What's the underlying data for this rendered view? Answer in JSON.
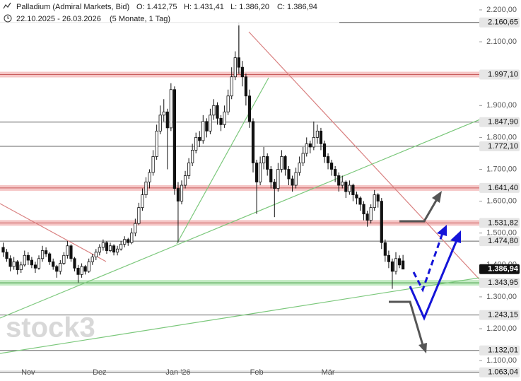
{
  "chart_data": {
    "type": "candlestick",
    "title": "Palladium (Admiral Markets, Bid)",
    "ohlc": [
      "O: 1.412,75",
      "H: 1.431,41",
      "L: 1.386,20",
      "C: 1.386,94"
    ],
    "subtitle": "22.10.2025 - 26.03.2026",
    "period": "(5 Monate, 1 Tag)",
    "watermark": "stock3",
    "up_color": "#ffffff",
    "down_color": "#111111",
    "ylim": [
      1036,
      2231
    ],
    "yticks": [
      {
        "value": 2200,
        "label": "2.200,00"
      },
      {
        "value": 2100,
        "label": "2.100,00"
      },
      {
        "value": 2000,
        "label": "2.000,00"
      },
      {
        "value": 1900,
        "label": "1.900,00"
      },
      {
        "value": 1800,
        "label": "1.800,00"
      },
      {
        "value": 1700,
        "label": "1.700,00"
      },
      {
        "value": 1600,
        "label": "1.600,00"
      },
      {
        "value": 1500,
        "label": "1.500,00"
      },
      {
        "value": 1400,
        "label": "1.400,00"
      },
      {
        "value": 1300,
        "label": "1.300,00"
      },
      {
        "value": 1200,
        "label": "1.200,00"
      },
      {
        "value": 1100,
        "label": "1.100,00"
      }
    ],
    "levels": [
      {
        "value": 2160.65,
        "label": "2.160,65",
        "style": "line-dark"
      },
      {
        "value": 1997.1,
        "label": "1.997,10",
        "style": "band-red"
      },
      {
        "value": 1847.9,
        "label": "1.847,90",
        "style": "line"
      },
      {
        "value": 1772.1,
        "label": "1.772,10",
        "style": "line"
      },
      {
        "value": 1641.4,
        "label": "1.641,40",
        "style": "band-red"
      },
      {
        "value": 1531.82,
        "label": "1.531,82",
        "style": "band-red"
      },
      {
        "value": 1474.8,
        "label": "1.474,80",
        "style": "line"
      },
      {
        "value": 1386.94,
        "label": "1.386,94",
        "style": "price"
      },
      {
        "value": 1343.95,
        "label": "1.343,95",
        "style": "band-green"
      },
      {
        "value": 1243.15,
        "label": "1.243,15",
        "style": "line"
      },
      {
        "value": 1132.01,
        "label": "1.132,01",
        "style": "line"
      },
      {
        "value": 1063.04,
        "label": "1.063,04",
        "style": "line"
      }
    ],
    "categories": [
      null,
      null,
      null,
      null,
      null,
      null,
      null,
      null,
      "Nov",
      null,
      null,
      null,
      null,
      null,
      null,
      null,
      null,
      null,
      null,
      null,
      null,
      null,
      null,
      null,
      null,
      null,
      null,
      null,
      "Dez",
      null,
      null,
      null,
      null,
      null,
      null,
      null,
      null,
      null,
      null,
      null,
      null,
      null,
      null,
      null,
      null,
      null,
      null,
      null,
      null,
      null,
      "Jan '26",
      null,
      null,
      null,
      null,
      null,
      null,
      null,
      null,
      null,
      null,
      null,
      null,
      null,
      null,
      null,
      null,
      null,
      null,
      null,
      null,
      null,
      "Feb",
      null,
      null,
      null,
      null,
      null,
      null,
      null,
      null,
      null,
      null,
      null,
      null,
      null,
      null,
      null,
      null,
      null,
      null,
      null,
      "Mär",
      null,
      null,
      null,
      null,
      null,
      null,
      null,
      null,
      null,
      null,
      null,
      null,
      null,
      null,
      null,
      null,
      null,
      null,
      null,
      null
    ],
    "values": [
      [
        1455,
        1470,
        1425,
        1440
      ],
      [
        1440,
        1450,
        1410,
        1420
      ],
      [
        1420,
        1430,
        1380,
        1395
      ],
      [
        1395,
        1425,
        1385,
        1410
      ],
      [
        1410,
        1415,
        1370,
        1385
      ],
      [
        1385,
        1410,
        1375,
        1400
      ],
      [
        1400,
        1445,
        1395,
        1430
      ],
      [
        1430,
        1440,
        1400,
        1415
      ],
      [
        1415,
        1425,
        1390,
        1400
      ],
      [
        1400,
        1410,
        1375,
        1390
      ],
      [
        1390,
        1430,
        1385,
        1420
      ],
      [
        1420,
        1460,
        1410,
        1445
      ],
      [
        1445,
        1455,
        1425,
        1435
      ],
      [
        1435,
        1440,
        1400,
        1410
      ],
      [
        1410,
        1420,
        1385,
        1395
      ],
      [
        1395,
        1400,
        1360,
        1380
      ],
      [
        1380,
        1415,
        1370,
        1405
      ],
      [
        1405,
        1440,
        1400,
        1430
      ],
      [
        1430,
        1475,
        1420,
        1460
      ],
      [
        1460,
        1465,
        1410,
        1420
      ],
      [
        1420,
        1425,
        1380,
        1390
      ],
      [
        1390,
        1400,
        1345,
        1370
      ],
      [
        1370,
        1405,
        1360,
        1395
      ],
      [
        1395,
        1400,
        1370,
        1380
      ],
      [
        1380,
        1420,
        1375,
        1410
      ],
      [
        1410,
        1435,
        1400,
        1425
      ],
      [
        1425,
        1450,
        1415,
        1440
      ],
      [
        1440,
        1465,
        1430,
        1455
      ],
      [
        1455,
        1480,
        1445,
        1470
      ],
      [
        1470,
        1475,
        1435,
        1445
      ],
      [
        1445,
        1470,
        1440,
        1460
      ],
      [
        1460,
        1465,
        1430,
        1440
      ],
      [
        1440,
        1460,
        1430,
        1450
      ],
      [
        1450,
        1475,
        1445,
        1465
      ],
      [
        1465,
        1490,
        1455,
        1480
      ],
      [
        1480,
        1485,
        1460,
        1470
      ],
      [
        1470,
        1515,
        1465,
        1500
      ],
      [
        1500,
        1545,
        1490,
        1530
      ],
      [
        1530,
        1595,
        1525,
        1580
      ],
      [
        1580,
        1640,
        1570,
        1620
      ],
      [
        1620,
        1675,
        1610,
        1660
      ],
      [
        1660,
        1700,
        1640,
        1690
      ],
      [
        1690,
        1760,
        1680,
        1740
      ],
      [
        1740,
        1840,
        1730,
        1820
      ],
      [
        1820,
        1900,
        1810,
        1870
      ],
      [
        1870,
        1920,
        1850,
        1880
      ],
      [
        1880,
        1890,
        1700,
        1830
      ],
      [
        1830,
        1970,
        1820,
        1950
      ],
      [
        1950,
        1960,
        1620,
        1640
      ],
      [
        1640,
        1660,
        1470,
        1600
      ],
      [
        1600,
        1665,
        1590,
        1650
      ],
      [
        1650,
        1695,
        1640,
        1680
      ],
      [
        1680,
        1735,
        1670,
        1720
      ],
      [
        1720,
        1780,
        1710,
        1760
      ],
      [
        1760,
        1815,
        1750,
        1800
      ],
      [
        1800,
        1820,
        1770,
        1790
      ],
      [
        1790,
        1870,
        1780,
        1850
      ],
      [
        1850,
        1860,
        1800,
        1820
      ],
      [
        1820,
        1890,
        1810,
        1870
      ],
      [
        1870,
        1920,
        1855,
        1900
      ],
      [
        1900,
        1910,
        1840,
        1860
      ],
      [
        1860,
        1870,
        1820,
        1840
      ],
      [
        1840,
        1900,
        1830,
        1880
      ],
      [
        1880,
        1950,
        1870,
        1930
      ],
      [
        1930,
        2020,
        1920,
        1990
      ],
      [
        1990,
        2070,
        1980,
        2050
      ],
      [
        2050,
        2160.65,
        2000,
        2020
      ],
      [
        2020,
        2040,
        1960,
        1990
      ],
      [
        1990,
        2000,
        1900,
        1930
      ],
      [
        1930,
        1950,
        1830,
        1850
      ],
      [
        1850,
        1860,
        1690,
        1720
      ],
      [
        1720,
        1730,
        1560,
        1660
      ],
      [
        1660,
        1740,
        1650,
        1720
      ],
      [
        1720,
        1770,
        1700,
        1740
      ],
      [
        1740,
        1750,
        1680,
        1700
      ],
      [
        1700,
        1710,
        1640,
        1660
      ],
      [
        1660,
        1670,
        1550,
        1640
      ],
      [
        1640,
        1720,
        1630,
        1700
      ],
      [
        1700,
        1760,
        1690,
        1740
      ],
      [
        1740,
        1745,
        1680,
        1700
      ],
      [
        1700,
        1710,
        1650,
        1670
      ],
      [
        1670,
        1680,
        1630,
        1650
      ],
      [
        1650,
        1705,
        1640,
        1690
      ],
      [
        1690,
        1740,
        1680,
        1720
      ],
      [
        1720,
        1770,
        1710,
        1750
      ],
      [
        1750,
        1800,
        1740,
        1780
      ],
      [
        1780,
        1790,
        1750,
        1770
      ],
      [
        1770,
        1850,
        1760,
        1800
      ],
      [
        1800,
        1840,
        1780,
        1820
      ],
      [
        1820,
        1830,
        1760,
        1780
      ],
      [
        1780,
        1790,
        1720,
        1740
      ],
      [
        1740,
        1750,
        1700,
        1720
      ],
      [
        1720,
        1730,
        1680,
        1700
      ],
      [
        1700,
        1710,
        1660,
        1680
      ],
      [
        1680,
        1690,
        1630,
        1650
      ],
      [
        1650,
        1680,
        1640,
        1660
      ],
      [
        1660,
        1665,
        1610,
        1630
      ],
      [
        1630,
        1665,
        1620,
        1650
      ],
      [
        1650,
        1655,
        1600,
        1620
      ],
      [
        1620,
        1630,
        1590,
        1610
      ],
      [
        1610,
        1615,
        1570,
        1590
      ],
      [
        1590,
        1600,
        1540,
        1560
      ],
      [
        1560,
        1570,
        1520,
        1540
      ],
      [
        1540,
        1590,
        1530,
        1580
      ],
      [
        1580,
        1635,
        1570,
        1620
      ],
      [
        1620,
        1625,
        1580,
        1600
      ],
      [
        1600,
        1610,
        1450,
        1470
      ],
      [
        1470,
        1480,
        1410,
        1430
      ],
      [
        1430,
        1445,
        1390,
        1410
      ],
      [
        1410,
        1420,
        1325,
        1380
      ],
      [
        1380,
        1440,
        1370,
        1420
      ],
      [
        1420,
        1430,
        1390,
        1400
      ],
      [
        1412.75,
        1431.41,
        1386.2,
        1386.94
      ]
    ]
  }
}
